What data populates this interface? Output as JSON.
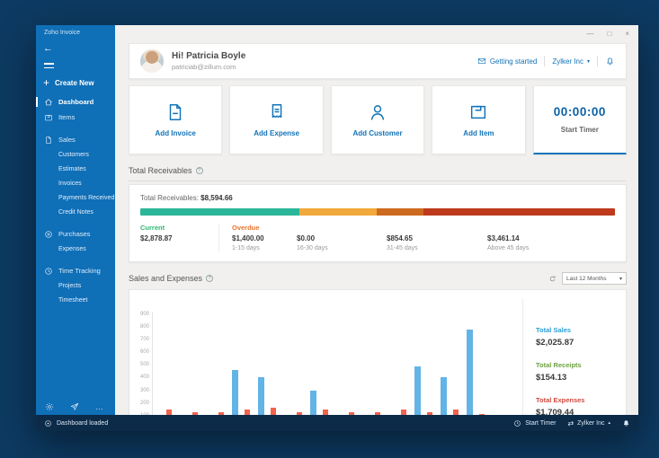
{
  "window": {
    "app_title": "Zoho Invoice",
    "controls": {
      "minimize": "—",
      "maximize": "□",
      "close": "×"
    }
  },
  "sidebar": {
    "create_new_label": "Create New",
    "nav": [
      {
        "label": "Dashboard",
        "icon": "home",
        "active": true
      },
      {
        "label": "Items",
        "icon": "box",
        "active": false
      }
    ],
    "groups": [
      {
        "label": "Sales",
        "icon": "file",
        "children": [
          "Customers",
          "Estimates",
          "Invoices",
          "Payments Received",
          "Credit Notes"
        ]
      },
      {
        "label": "Purchases",
        "icon": "purchases",
        "children": [
          "Expenses"
        ]
      },
      {
        "label": "Time Tracking",
        "icon": "clock",
        "children": [
          "Projects",
          "Timesheet"
        ]
      }
    ],
    "bottom_icons": [
      "settings",
      "feedback",
      "more"
    ]
  },
  "header": {
    "greeting": "Hi! Patricia Boyle",
    "email": "patriciab@zillum.com",
    "getting_started_label": "Getting started",
    "org_name": "Zylker Inc"
  },
  "quick_actions": [
    {
      "label": "Add Invoice",
      "icon": "invoice"
    },
    {
      "label": "Add Expense",
      "icon": "receipt"
    },
    {
      "label": "Add Customer",
      "icon": "person"
    },
    {
      "label": "Add Item",
      "icon": "itembox"
    }
  ],
  "timer": {
    "time": "00:00:00",
    "label": "Start Timer"
  },
  "receivables": {
    "heading": "Total Receivables",
    "total_label": "Total Receivables:",
    "total_value": "$8,594.66",
    "segments": [
      {
        "name": "current",
        "pct": 33.5,
        "color": "#2cb699"
      },
      {
        "name": "overdue-1-15-days",
        "pct": 16.3,
        "color": "#f0a93a"
      },
      {
        "name": "overdue-31-45-days",
        "pct": 9.9,
        "color": "#cd6a1f"
      },
      {
        "name": "overdue-above-45-days",
        "pct": 40.3,
        "color": "#bd3a1d"
      }
    ],
    "columns": [
      {
        "label": "Current",
        "label_color": "#2bb673",
        "value": "$2,878.87",
        "sub": ""
      },
      {
        "label": "Overdue",
        "label_color": "#e8742c",
        "value": "$1,400.00",
        "sub": "1-15 days"
      },
      {
        "label": "",
        "label_color": "",
        "value": "$0.00",
        "sub": "16-30 days"
      },
      {
        "label": "",
        "label_color": "",
        "value": "$854.65",
        "sub": "31-45 days"
      },
      {
        "label": "",
        "label_color": "",
        "value": "$3,461.14",
        "sub": "Above 45 days"
      }
    ]
  },
  "sales_expenses": {
    "heading": "Sales and Expenses",
    "filter_label": "Last 12 Months",
    "totals": [
      {
        "label": "Total Sales",
        "value": "$2,025.87",
        "color": "#2d9fd8"
      },
      {
        "label": "Total Receipts",
        "value": "$154.13",
        "color": "#6da144"
      },
      {
        "label": "Total Expenses",
        "value": "$1,709.44",
        "color": "#cf4a3f"
      }
    ]
  },
  "chart_data": {
    "type": "bar",
    "title": "Sales and Expenses",
    "xlabel": "",
    "ylabel": "",
    "ylim": [
      0,
      900
    ],
    "yticks": [
      100,
      200,
      300,
      400,
      500,
      600,
      700,
      800,
      900
    ],
    "grid": false,
    "legend": "none",
    "x_axis_labels_visible": false,
    "categories": [
      1,
      2,
      3,
      4,
      5,
      6,
      7,
      8,
      9,
      10,
      11,
      12,
      13
    ],
    "series": [
      {
        "name": "Sales",
        "color": "#63b4e6",
        "values": [
          0,
          0,
          0,
          460,
          400,
          0,
          300,
          0,
          0,
          0,
          490,
          400,
          780
        ]
      },
      {
        "name": "Receipts",
        "color": "#f2c14b",
        "values": [
          0,
          0,
          0,
          0,
          0,
          0,
          100,
          0,
          0,
          0,
          0,
          0,
          0
        ]
      },
      {
        "name": "Expenses",
        "color": "#f4624d",
        "values": [
          150,
          130,
          130,
          150,
          165,
          130,
          150,
          130,
          130,
          150,
          130,
          150,
          110
        ]
      }
    ]
  },
  "status_bar": {
    "message": "Dashboard loaded",
    "start_timer_label": "Start Timer",
    "org_name": "Zylker Inc"
  }
}
